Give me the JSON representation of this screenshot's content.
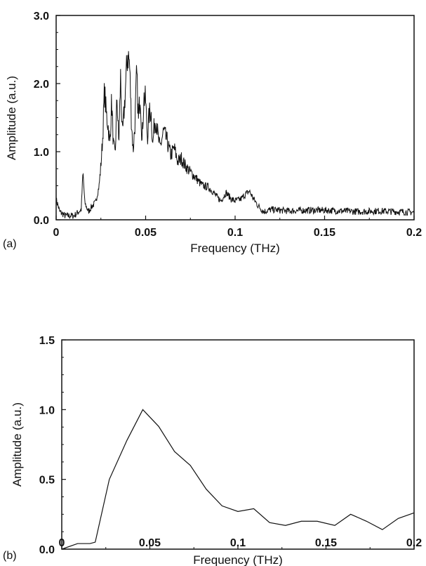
{
  "chart_data": [
    {
      "type": "line",
      "panel_label": "(a)",
      "xlabel": "Frequency  (THz)",
      "ylabel": "Amplitude (a.u.)",
      "xlim": [
        0,
        0.2
      ],
      "ylim": [
        0,
        3.0
      ],
      "x_ticks": [
        0,
        0.05,
        0.1,
        0.15,
        0.2
      ],
      "x_tick_labels": [
        "0",
        "0.05",
        "0.1",
        "0.15",
        "0.2"
      ],
      "y_ticks": [
        0,
        1.0,
        2.0,
        3.0
      ],
      "y_tick_labels": [
        "0.0",
        "1.0",
        "2.0",
        "3.0"
      ],
      "grid": false,
      "line_color": "#111111",
      "noisy": true,
      "series": [
        {
          "x": [
            0,
            0.002,
            0.005,
            0.01,
            0.014,
            0.015,
            0.016,
            0.018,
            0.02,
            0.022,
            0.024,
            0.025,
            0.026,
            0.027,
            0.028,
            0.029,
            0.03,
            0.031,
            0.032,
            0.033,
            0.034,
            0.035,
            0.036,
            0.037,
            0.038,
            0.039,
            0.04,
            0.041,
            0.042,
            0.043,
            0.044,
            0.045,
            0.046,
            0.047,
            0.048,
            0.049,
            0.05,
            0.051,
            0.052,
            0.053,
            0.054,
            0.055,
            0.056,
            0.057,
            0.058,
            0.06,
            0.062,
            0.064,
            0.066,
            0.068,
            0.07,
            0.072,
            0.075,
            0.078,
            0.08,
            0.082,
            0.085,
            0.088,
            0.09,
            0.092,
            0.095,
            0.098,
            0.1,
            0.103,
            0.106,
            0.108,
            0.11,
            0.113,
            0.116,
            0.12,
            0.125,
            0.13,
            0.14,
            0.15,
            0.16,
            0.17,
            0.18,
            0.19,
            0.2
          ],
          "y": [
            0.3,
            0.12,
            0.06,
            0.06,
            0.15,
            0.7,
            0.25,
            0.12,
            0.2,
            0.25,
            0.5,
            0.8,
            1.2,
            1.9,
            1.55,
            1.4,
            1.1,
            1.75,
            1.1,
            0.95,
            1.8,
            1.1,
            2.1,
            1.2,
            1.6,
            2.05,
            2.45,
            2.3,
            1.5,
            1.0,
            1.4,
            2.15,
            1.45,
            1.9,
            1.15,
            1.8,
            1.75,
            1.2,
            1.55,
            1.6,
            1.1,
            1.45,
            1.45,
            1.2,
            1.05,
            1.3,
            1.15,
            0.95,
            1.05,
            0.85,
            0.9,
            0.8,
            0.7,
            0.62,
            0.55,
            0.5,
            0.48,
            0.4,
            0.33,
            0.28,
            0.4,
            0.3,
            0.28,
            0.3,
            0.38,
            0.42,
            0.32,
            0.2,
            0.12,
            0.15,
            0.14,
            0.13,
            0.14,
            0.14,
            0.13,
            0.12,
            0.13,
            0.12,
            0.11
          ]
        }
      ]
    },
    {
      "type": "line",
      "panel_label": "(b)",
      "xlabel": "Frequency  (THz)",
      "ylabel": "Amplitude (a.u.)",
      "xlim": [
        0,
        0.2
      ],
      "ylim": [
        0,
        1.5
      ],
      "x_ticks": [
        0,
        0.05,
        0.1,
        0.15,
        0.2
      ],
      "x_tick_labels": [
        "0",
        "0.05",
        "0.1",
        "0.15",
        "0.2"
      ],
      "y_ticks": [
        0,
        0.5,
        1.0,
        1.5
      ],
      "y_tick_labels": [
        "0.0",
        "0.5",
        "1.0",
        "1.5"
      ],
      "grid": false,
      "line_color": "#111111",
      "noisy": false,
      "series": [
        {
          "x": [
            0,
            0.009,
            0.016,
            0.019,
            0.027,
            0.037,
            0.046,
            0.055,
            0.064,
            0.073,
            0.082,
            0.091,
            0.1,
            0.109,
            0.118,
            0.127,
            0.136,
            0.145,
            0.155,
            0.164,
            0.173,
            0.182,
            0.191,
            0.2
          ],
          "y": [
            0.0,
            0.04,
            0.04,
            0.05,
            0.5,
            0.78,
            1.0,
            0.88,
            0.7,
            0.6,
            0.43,
            0.31,
            0.27,
            0.29,
            0.19,
            0.17,
            0.2,
            0.2,
            0.17,
            0.25,
            0.2,
            0.14,
            0.22,
            0.26
          ]
        }
      ]
    }
  ]
}
